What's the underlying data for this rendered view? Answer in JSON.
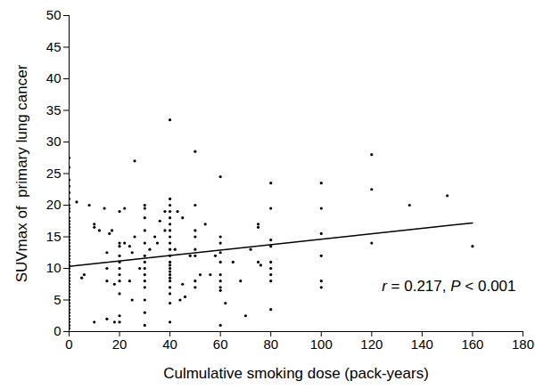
{
  "chart_data": {
    "type": "scatter",
    "x_label": "Culmulative smoking dose (pack-years)",
    "y_label": "SUVmax of  primary lung cancer",
    "annotation": "r = 0.217, P < 0.001",
    "color": "#000000",
    "marker": "circle",
    "x": [
      0,
      0,
      0,
      0,
      0,
      0,
      0,
      0,
      0,
      0,
      0,
      0,
      0,
      0,
      0,
      0,
      0,
      0,
      0,
      0,
      0,
      0,
      0,
      0,
      0,
      0,
      0,
      0,
      0,
      0,
      0,
      0,
      0,
      0,
      0,
      0,
      0,
      0,
      0,
      0,
      0,
      0,
      0,
      0,
      0,
      3,
      5,
      6,
      8,
      10,
      10,
      10,
      12,
      14,
      15,
      15,
      15,
      15,
      16,
      17,
      18,
      18,
      20,
      20,
      20,
      20,
      20,
      20,
      20,
      20,
      20,
      20,
      20,
      22,
      22,
      24,
      24,
      25,
      25,
      26,
      26,
      28,
      30,
      30,
      30,
      30,
      30,
      30,
      30,
      30,
      30,
      30,
      30,
      30,
      30,
      30,
      32,
      34,
      35,
      36,
      38,
      38,
      40,
      40,
      40,
      40,
      40,
      40,
      40,
      40,
      40,
      40,
      40,
      40,
      40,
      40,
      40,
      40,
      40,
      40,
      40,
      40,
      40,
      40,
      42,
      43,
      44,
      45,
      45,
      46,
      48,
      50,
      50,
      50,
      50,
      50,
      50,
      50,
      50,
      52,
      54,
      56,
      58,
      60,
      60,
      60,
      60,
      60,
      60,
      60,
      60,
      60,
      60,
      62,
      65,
      68,
      70,
      72,
      75,
      75,
      75,
      76,
      80,
      80,
      80,
      80,
      80,
      80,
      80,
      80,
      80,
      100,
      100,
      100,
      100,
      100,
      100,
      120,
      120,
      120,
      135,
      150,
      160
    ],
    "values": [
      27.5,
      26,
      24,
      23,
      22,
      21,
      20,
      19.5,
      19,
      18,
      17.5,
      17,
      16.5,
      16,
      15.5,
      15,
      14.5,
      14,
      13.5,
      13,
      12.5,
      12,
      11.5,
      11,
      10.5,
      10,
      9.5,
      9,
      8.5,
      8,
      7.5,
      7,
      6.5,
      6,
      5.5,
      5,
      4.5,
      4,
      3.5,
      3,
      2.5,
      2,
      1.5,
      1,
      0.5,
      20.5,
      8.5,
      9,
      20,
      16.5,
      17,
      1.5,
      16,
      19.5,
      12.5,
      8,
      10,
      2,
      15.5,
      16,
      7.5,
      1.5,
      19,
      14,
      13.5,
      12,
      11,
      10,
      9,
      8,
      6,
      2.5,
      1.5,
      19.5,
      14,
      13.5,
      8,
      5,
      12.5,
      27,
      15,
      10,
      20,
      19.5,
      18,
      16,
      14,
      12,
      11,
      10,
      9,
      8,
      7,
      5,
      3,
      1,
      13,
      15,
      14,
      17.5,
      19,
      16,
      33.5,
      21,
      20,
      19,
      18,
      17,
      16,
      15,
      14,
      13,
      12,
      11,
      10.5,
      10,
      9.5,
      9,
      8.5,
      8,
      7,
      6,
      4.5,
      1.5,
      13,
      19,
      5,
      18,
      7.5,
      5.5,
      12,
      28.5,
      20,
      16,
      15,
      13,
      12,
      8,
      7,
      9,
      17,
      9,
      12,
      24.5,
      15,
      14,
      12.5,
      11,
      9,
      8,
      7,
      6.5,
      1,
      4.5,
      11,
      8,
      2.5,
      13,
      17,
      16.5,
      11,
      10.5,
      23.5,
      19.5,
      14.5,
      13.5,
      11,
      10,
      9,
      8,
      3.5,
      23.5,
      19.5,
      15.5,
      12,
      8,
      7,
      28,
      22.5,
      14,
      20,
      21.5,
      13.5
    ],
    "trend_line": {
      "x": [
        0,
        160
      ],
      "values": [
        10.3,
        17.2
      ],
      "color": "#000000",
      "line_style": "solid"
    },
    "xlim": [
      0,
      180
    ],
    "xticks": [
      0,
      20,
      40,
      60,
      80,
      100,
      120,
      140,
      160,
      180
    ],
    "ylim": [
      0,
      50
    ],
    "yticks": [
      0,
      5,
      10,
      15,
      20,
      25,
      30,
      35,
      40,
      45,
      50
    ],
    "grid": false
  }
}
